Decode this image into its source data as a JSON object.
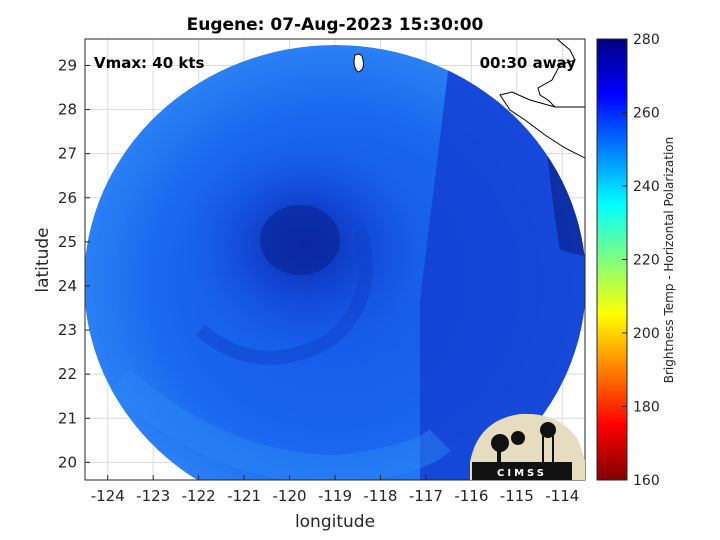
{
  "title": "Eugene: 07-Aug-2023 15:30:00",
  "annotations": {
    "vmax": "Vmax: 40 kts",
    "time_away": "00:30 away"
  },
  "logo_text": "CIMSS",
  "colors": {
    "field_outer": "#1a6df0",
    "field_mid": "#1451e0",
    "field_core": "#0b2eb8",
    "field_east": "#1240d6",
    "land": "#ffffff",
    "logo_bg": "#e6dcc0"
  },
  "chart_data": {
    "type": "heatmap",
    "title": "Eugene: 07-Aug-2023 15:30:00",
    "xlabel": "longitude",
    "ylabel": "latitude",
    "xlim": [
      -124.5,
      -113.5
    ],
    "ylim": [
      19.6,
      29.6
    ],
    "xticks": [
      -124,
      -123,
      -122,
      -121,
      -120,
      -119,
      -118,
      -117,
      -116,
      -115,
      -114
    ],
    "yticks": [
      20,
      21,
      22,
      23,
      24,
      25,
      26,
      27,
      28,
      29
    ],
    "xtick_labels": [
      "-124",
      "-123",
      "-122",
      "-121",
      "-120",
      "-119",
      "-118",
      "-117",
      "-116",
      "-115",
      "-114"
    ],
    "ytick_labels": [
      "20",
      "21",
      "22",
      "23",
      "24",
      "25",
      "26",
      "27",
      "28",
      "29"
    ],
    "grid": true,
    "storm_center": {
      "lon": -119.5,
      "lat": 24.9
    },
    "field_extent": {
      "lon_min": -124.3,
      "lon_max": -113.6,
      "lat_min": 19.6,
      "lat_max": 29.5
    },
    "colorbar": {
      "label": "Brightness Temp - Horizontal Polarization",
      "range": [
        160,
        280
      ],
      "ticks": [
        160,
        180,
        200,
        220,
        240,
        260,
        280
      ],
      "tick_labels": [
        "160",
        "180",
        "200",
        "220",
        "240",
        "260",
        "280"
      ],
      "colormap": "jet"
    }
  }
}
